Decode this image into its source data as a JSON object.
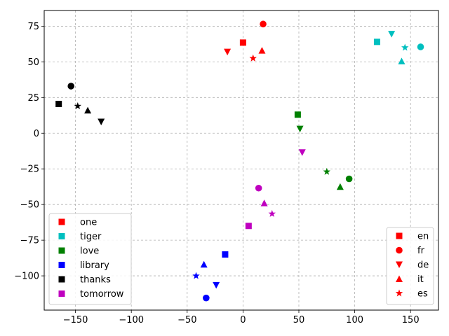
{
  "chart_data": {
    "type": "scatter",
    "xlim": [
      -178,
      175
    ],
    "ylim": [
      -124,
      86
    ],
    "xticks": [
      -150,
      -100,
      -50,
      0,
      50,
      100,
      150
    ],
    "yticks": [
      75,
      50,
      25,
      0,
      -25,
      -50,
      -75,
      -100
    ],
    "grid": true,
    "xlabel": "",
    "ylabel": "",
    "word_legend": {
      "placement": "lower-left",
      "entries": [
        {
          "label": "one",
          "color": "#ff0000"
        },
        {
          "label": "tiger",
          "color": "#00bfbf"
        },
        {
          "label": "love",
          "color": "#008000"
        },
        {
          "label": "library",
          "color": "#0000ff"
        },
        {
          "label": "thanks",
          "color": "#000000"
        },
        {
          "label": "tomorrow",
          "color": "#bf00bf"
        }
      ]
    },
    "language_legend": {
      "placement": "lower-right",
      "entries": [
        {
          "label": "en",
          "marker": "square"
        },
        {
          "label": "fr",
          "marker": "circle"
        },
        {
          "label": "de",
          "marker": "triangle-down"
        },
        {
          "label": "it",
          "marker": "triangle-up"
        },
        {
          "label": "es",
          "marker": "star"
        }
      ]
    },
    "points": [
      {
        "word": "one",
        "lang": "en",
        "x": 0,
        "y": 63.5
      },
      {
        "word": "one",
        "lang": "fr",
        "x": 18,
        "y": 76.5
      },
      {
        "word": "one",
        "lang": "de",
        "x": -14,
        "y": 57
      },
      {
        "word": "one",
        "lang": "it",
        "x": 17,
        "y": 58
      },
      {
        "word": "one",
        "lang": "es",
        "x": 9,
        "y": 52.5
      },
      {
        "word": "tiger",
        "lang": "en",
        "x": 120,
        "y": 64
      },
      {
        "word": "tiger",
        "lang": "fr",
        "x": 159,
        "y": 60.5
      },
      {
        "word": "tiger",
        "lang": "de",
        "x": 133,
        "y": 69.5
      },
      {
        "word": "tiger",
        "lang": "it",
        "x": 142,
        "y": 50.5
      },
      {
        "word": "tiger",
        "lang": "es",
        "x": 145,
        "y": 60
      },
      {
        "word": "love",
        "lang": "en",
        "x": 49,
        "y": 13
      },
      {
        "word": "love",
        "lang": "fr",
        "x": 95,
        "y": -32
      },
      {
        "word": "love",
        "lang": "de",
        "x": 51,
        "y": 3
      },
      {
        "word": "love",
        "lang": "it",
        "x": 87,
        "y": -37.5
      },
      {
        "word": "love",
        "lang": "es",
        "x": 75,
        "y": -27
      },
      {
        "word": "library",
        "lang": "en",
        "x": -16,
        "y": -85
      },
      {
        "word": "library",
        "lang": "fr",
        "x": -33,
        "y": -115.5
      },
      {
        "word": "library",
        "lang": "de",
        "x": -24,
        "y": -106.5
      },
      {
        "word": "library",
        "lang": "it",
        "x": -35,
        "y": -92
      },
      {
        "word": "library",
        "lang": "es",
        "x": -42,
        "y": -100
      },
      {
        "word": "thanks",
        "lang": "en",
        "x": -165,
        "y": 20.5
      },
      {
        "word": "thanks",
        "lang": "fr",
        "x": -154,
        "y": 33
      },
      {
        "word": "thanks",
        "lang": "de",
        "x": -127,
        "y": 8
      },
      {
        "word": "thanks",
        "lang": "it",
        "x": -139,
        "y": 16
      },
      {
        "word": "thanks",
        "lang": "es",
        "x": -148,
        "y": 19
      },
      {
        "word": "tomorrow",
        "lang": "en",
        "x": 5,
        "y": -65
      },
      {
        "word": "tomorrow",
        "lang": "fr",
        "x": 14,
        "y": -38.5
      },
      {
        "word": "tomorrow",
        "lang": "de",
        "x": 53,
        "y": -13.5
      },
      {
        "word": "tomorrow",
        "lang": "it",
        "x": 19,
        "y": -49
      },
      {
        "word": "tomorrow",
        "lang": "es",
        "x": 26,
        "y": -56.5
      }
    ]
  }
}
